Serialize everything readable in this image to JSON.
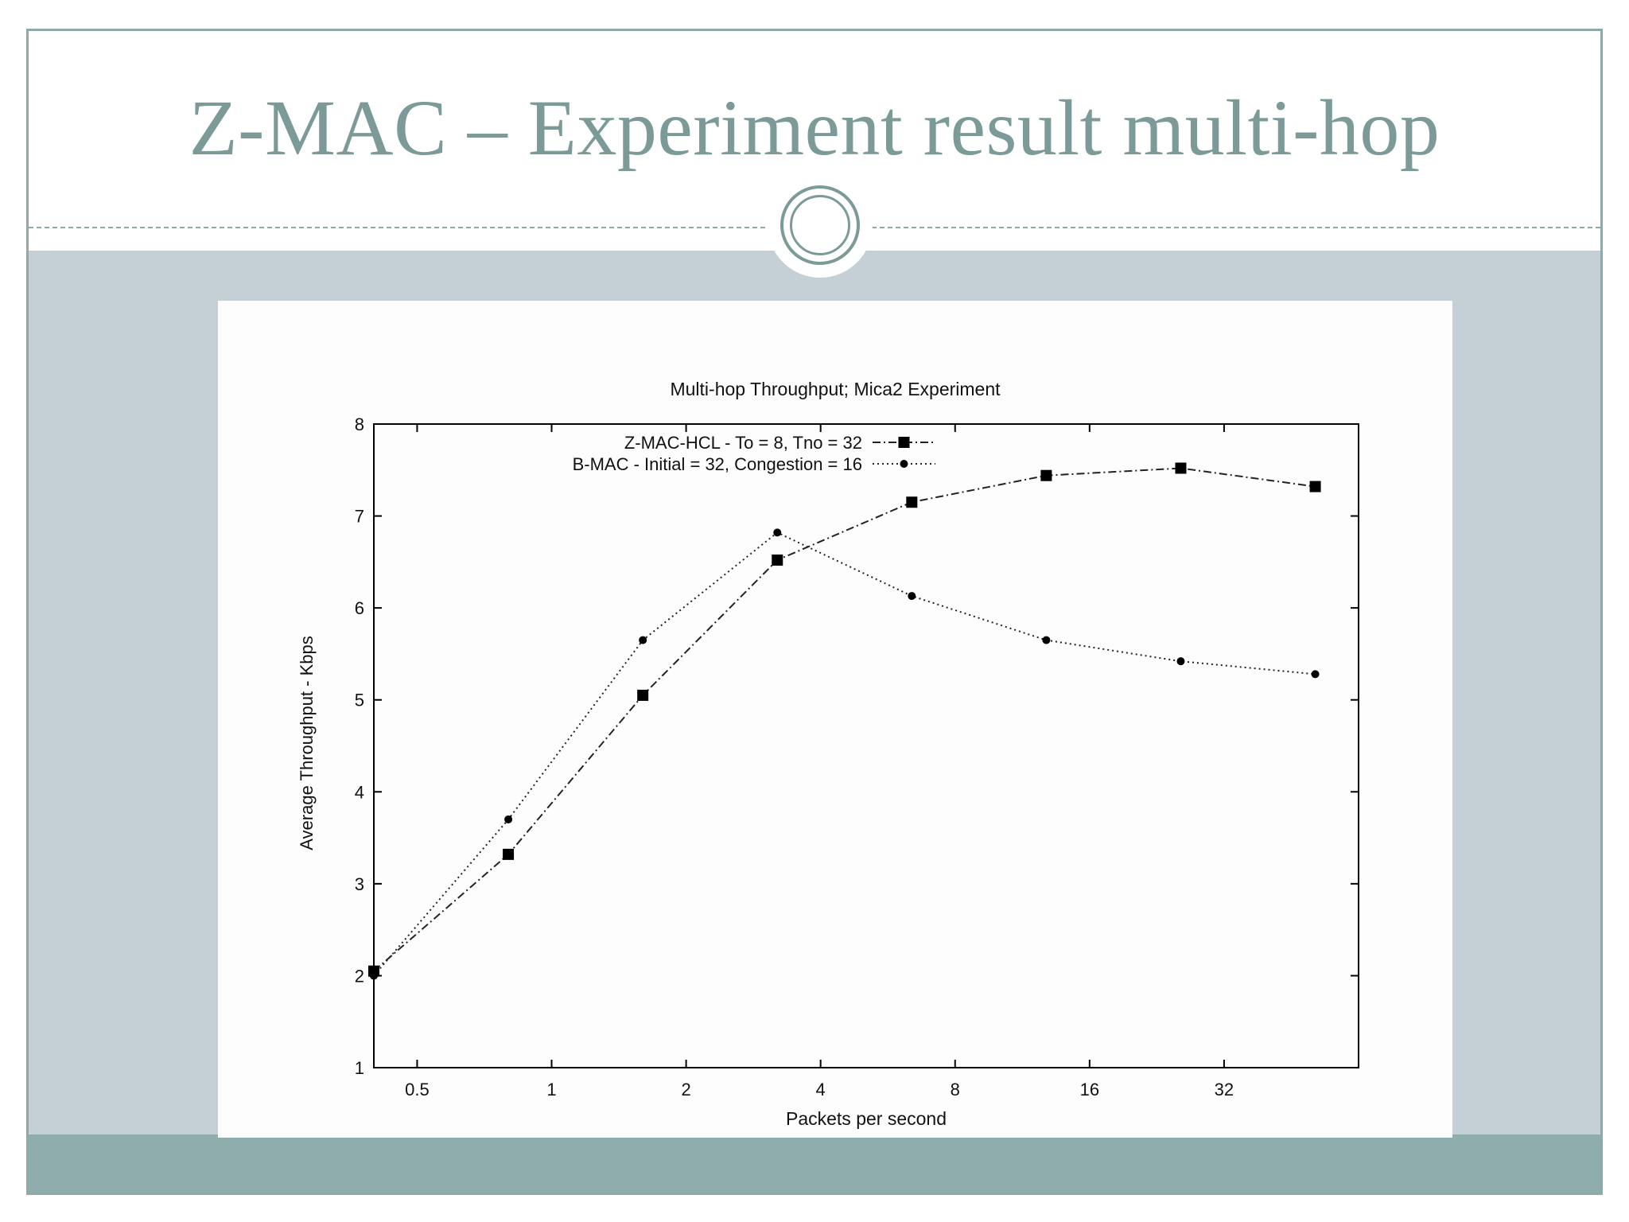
{
  "slide": {
    "title": "Z-MAC – Experiment result multi-hop"
  },
  "colors": {
    "title_text": "#7c9a98",
    "content_background": "#c4d0d6",
    "footer_band": "#8fadad",
    "frame": "#8fa8a8"
  },
  "chart_data": {
    "type": "line",
    "title": "Multi-hop Throughput; Mica2 Experiment",
    "xlabel": "Packets per second",
    "ylabel": "Average Throughput - Kbps",
    "x_scale": "log2",
    "xlim": [
      0.4,
      64
    ],
    "ylim": [
      1,
      8
    ],
    "x_ticks": [
      0.5,
      1,
      2,
      4,
      8,
      16,
      32
    ],
    "x_tick_labels": [
      "0.5",
      "1",
      "2",
      "4",
      "8",
      "16",
      "32"
    ],
    "y_ticks": [
      1,
      2,
      3,
      4,
      5,
      6,
      7,
      8
    ],
    "y_tick_labels": [
      "1",
      "2",
      "3",
      "4",
      "5",
      "6",
      "7",
      "8"
    ],
    "grid": false,
    "legend_position": "top-left",
    "x": [
      0.4,
      0.8,
      1.6,
      3.2,
      6.4,
      12.8,
      25.6,
      51.2
    ],
    "series": [
      {
        "name": "Z-MAC-HCL - To = 8, Tno = 32",
        "marker": "square",
        "line_style": "dash-dot",
        "values": [
          2.05,
          3.32,
          5.05,
          6.52,
          7.15,
          7.44,
          7.52,
          7.32
        ]
      },
      {
        "name": "B-MAC - Initial = 32, Congestion = 16",
        "marker": "circle",
        "line_style": "dotted",
        "values": [
          2.0,
          3.7,
          5.65,
          6.82,
          6.13,
          5.65,
          5.42,
          5.28
        ]
      }
    ]
  }
}
